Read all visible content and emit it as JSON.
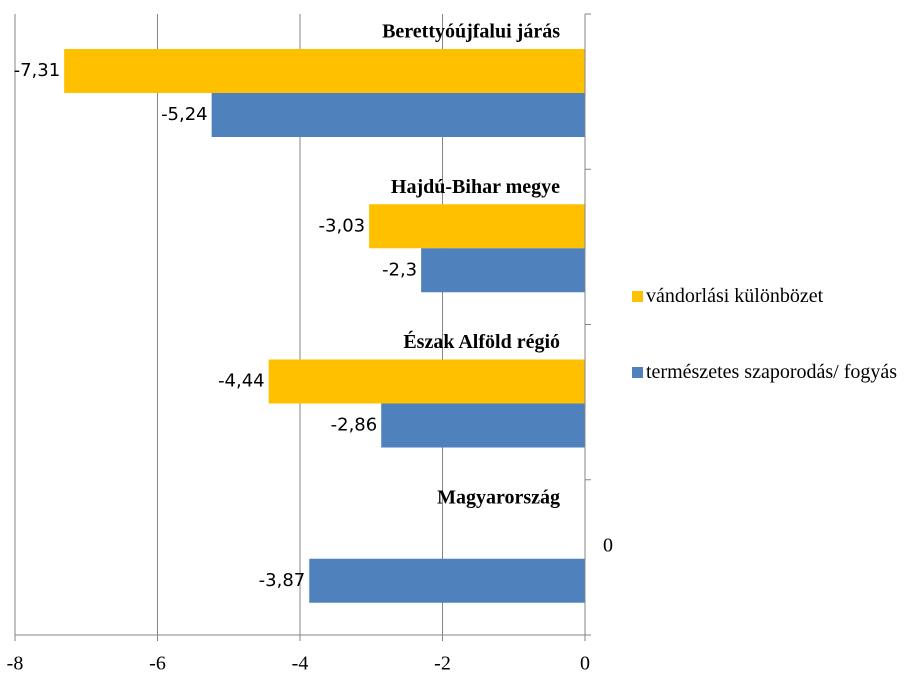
{
  "chart_data": {
    "type": "bar",
    "orientation": "horizontal",
    "categories": [
      "Berettyóújfalui járás",
      "Hajdú-Bihar megye",
      "Észak Alföld régió",
      "Magyarország"
    ],
    "series": [
      {
        "name": "vándorlási különbözet",
        "color": "#FFC000",
        "values": [
          -7.31,
          -3.03,
          -4.44,
          0
        ],
        "value_labels": [
          "-7,31",
          "-3,03",
          "-4,44",
          "0"
        ]
      },
      {
        "name": "természetes szaporodás/ fogyás",
        "color": "#4F81BD",
        "values": [
          -5.24,
          -2.3,
          -2.86,
          -3.87
        ],
        "value_labels": [
          "-5,24",
          "-2,3",
          "-2,86",
          "-3,87"
        ]
      }
    ],
    "xlim": [
      -8,
      0
    ],
    "xticks": [
      -8,
      -6,
      -4,
      -2,
      0
    ],
    "grid": true,
    "legend": "right"
  }
}
